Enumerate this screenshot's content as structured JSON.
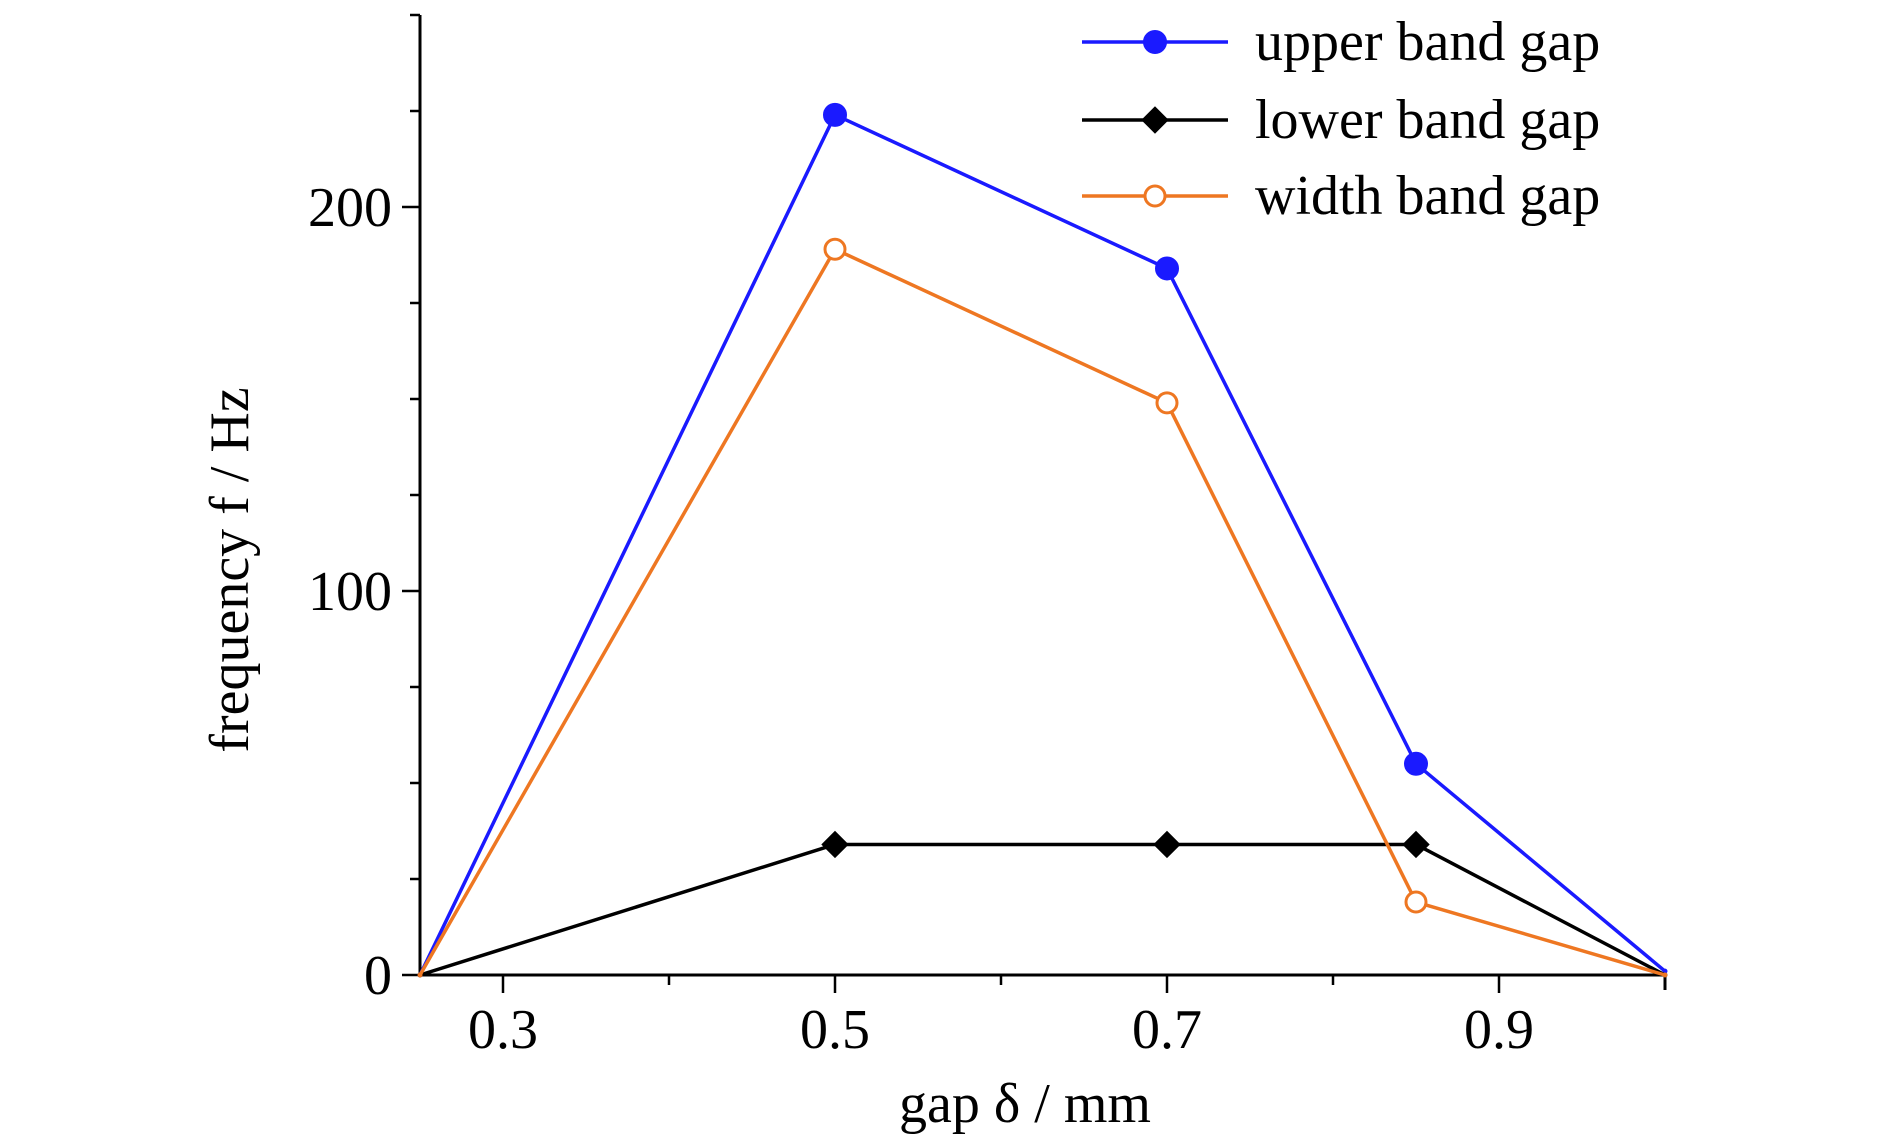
{
  "chart_data": {
    "type": "line",
    "title": "",
    "xlabel": "gap δ / mm",
    "ylabel": "frequency f / Hz",
    "xlim": [
      0.25,
      1.0
    ],
    "ylim": [
      0,
      250
    ],
    "x_major_ticks": [
      0.3,
      0.5,
      0.7,
      0.9
    ],
    "x_tick_labels": [
      "0.3",
      "0.5",
      "0.7",
      "0.9"
    ],
    "x_minor_ticks": [
      0.4,
      0.6,
      0.8
    ],
    "y_major_ticks": [
      0,
      100,
      200
    ],
    "y_tick_labels": [
      "0",
      "100",
      "200"
    ],
    "y_minor_ticks": [
      25,
      50,
      75,
      125,
      150,
      175,
      225,
      250
    ],
    "grid": false,
    "legend": "top-right",
    "series": [
      {
        "name": "upper band gap",
        "color": "#1a1aff",
        "marker": "filled-circle",
        "x": [
          0.25,
          0.5,
          0.7,
          0.85,
          1.0
        ],
        "y": [
          0,
          224,
          184,
          55,
          1
        ]
      },
      {
        "name": "lower band gap",
        "color": "#000000",
        "marker": "filled-diamond",
        "x": [
          0.25,
          0.5,
          0.7,
          0.85,
          1.0
        ],
        "y": [
          0,
          34,
          34,
          34,
          0
        ]
      },
      {
        "name": "width band gap",
        "color": "#ee7722",
        "marker": "open-circle",
        "x": [
          0.25,
          0.5,
          0.7,
          0.85,
          1.0
        ],
        "y": [
          0,
          189,
          149,
          19,
          0
        ]
      }
    ]
  }
}
